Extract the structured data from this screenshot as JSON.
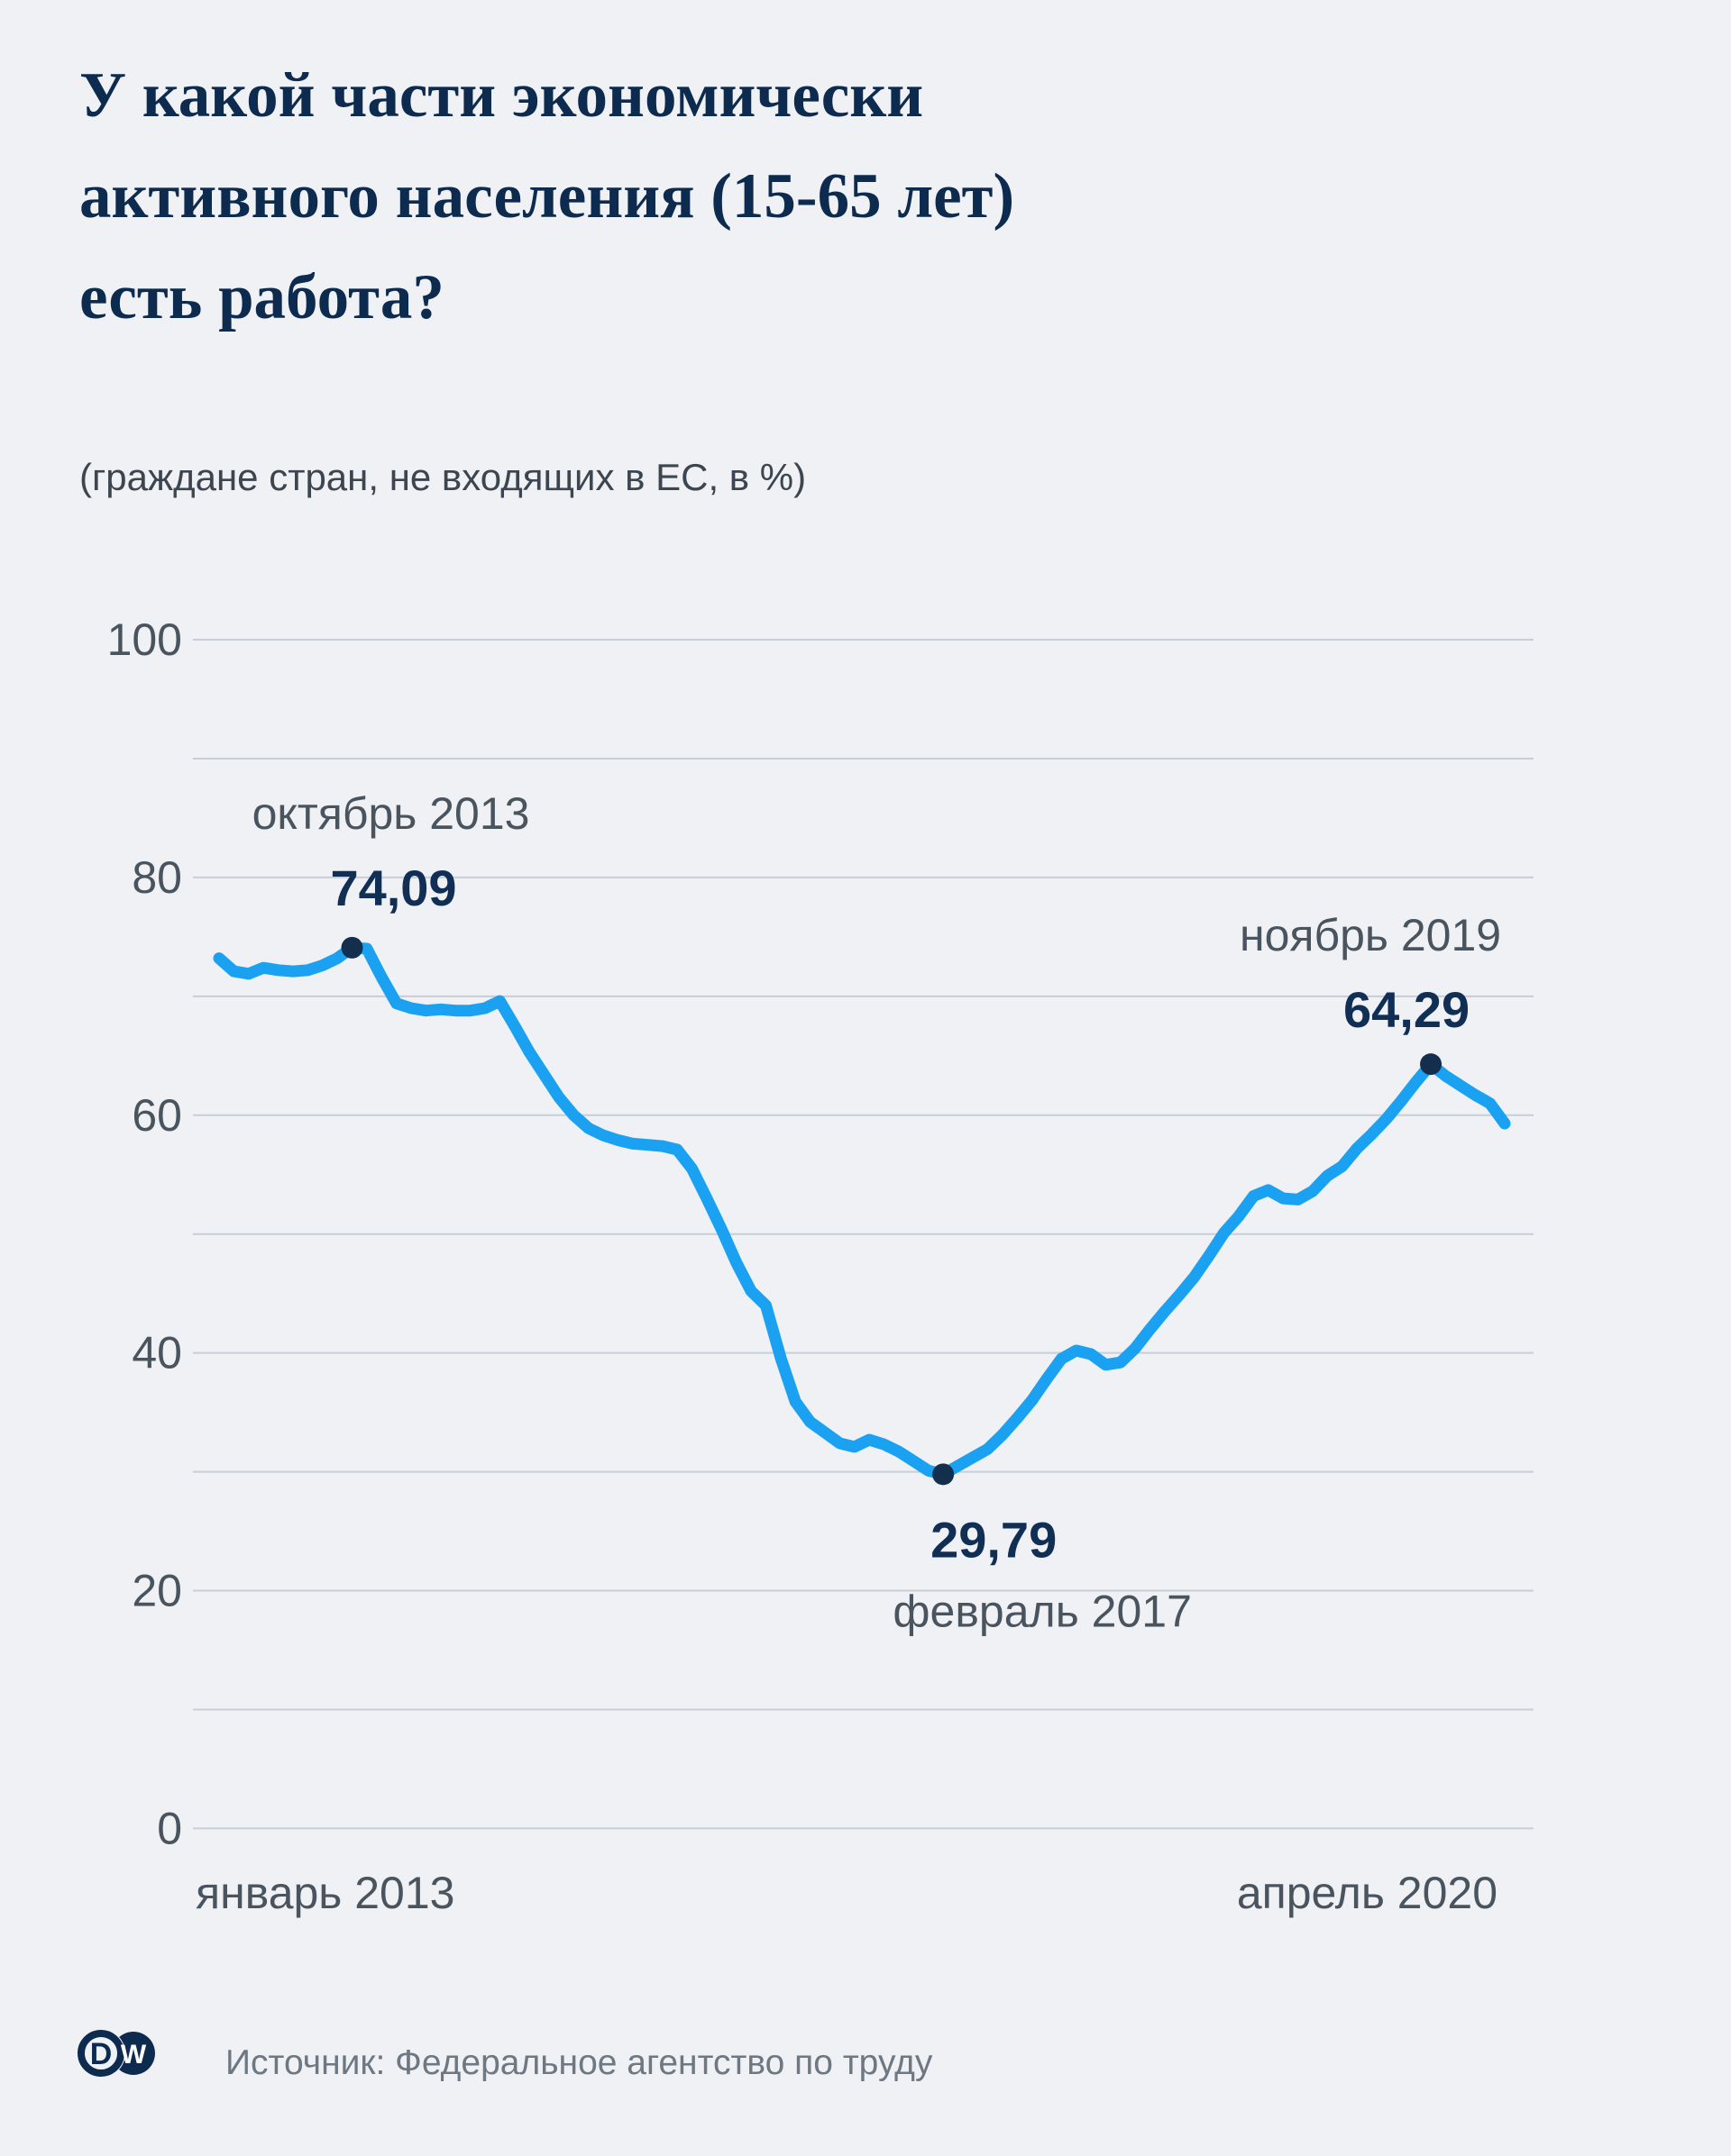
{
  "header": {
    "title": "У какой части экономически активного населения (15-65 лет) есть работа?",
    "subtitle": "(граждане стран, не входящих в ЕС, в %)"
  },
  "chart_data": {
    "type": "line",
    "title": "У какой части экономически активного населения (15-65 лет) есть работа?",
    "subtitle": "(граждане стран, не входящих в ЕС, в %)",
    "x_start_label": "январь 2013",
    "x_end_label": "апрель 2020",
    "x": [
      "2013-01",
      "2013-02",
      "2013-03",
      "2013-04",
      "2013-05",
      "2013-06",
      "2013-07",
      "2013-08",
      "2013-09",
      "2013-10",
      "2013-11",
      "2013-12",
      "2014-01",
      "2014-02",
      "2014-03",
      "2014-04",
      "2014-05",
      "2014-06",
      "2014-07",
      "2014-08",
      "2014-09",
      "2014-10",
      "2014-11",
      "2014-12",
      "2015-01",
      "2015-02",
      "2015-03",
      "2015-04",
      "2015-05",
      "2015-06",
      "2015-07",
      "2015-08",
      "2015-09",
      "2015-10",
      "2015-11",
      "2015-12",
      "2016-01",
      "2016-02",
      "2016-03",
      "2016-04",
      "2016-05",
      "2016-06",
      "2016-07",
      "2016-08",
      "2016-09",
      "2016-10",
      "2016-11",
      "2016-12",
      "2017-01",
      "2017-02",
      "2017-03",
      "2017-04",
      "2017-05",
      "2017-06",
      "2017-07",
      "2017-08",
      "2017-09",
      "2017-10",
      "2017-11",
      "2017-12",
      "2018-01",
      "2018-02",
      "2018-03",
      "2018-04",
      "2018-05",
      "2018-06",
      "2018-07",
      "2018-08",
      "2018-09",
      "2018-10",
      "2018-11",
      "2018-12",
      "2019-01",
      "2019-02",
      "2019-03",
      "2019-04",
      "2019-05",
      "2019-06",
      "2019-07",
      "2019-08",
      "2019-09",
      "2019-10",
      "2019-11",
      "2019-12",
      "2020-01",
      "2020-02",
      "2020-03",
      "2020-04"
    ],
    "values": [
      73.2,
      72.1,
      71.9,
      72.4,
      72.2,
      72.1,
      72.2,
      72.6,
      73.2,
      74.09,
      74.0,
      71.6,
      69.4,
      69.0,
      68.8,
      68.9,
      68.8,
      68.8,
      69.0,
      69.6,
      67.5,
      65.3,
      63.4,
      61.5,
      60.0,
      58.9,
      58.3,
      57.9,
      57.6,
      57.5,
      57.4,
      57.1,
      55.5,
      53.0,
      50.4,
      47.6,
      45.2,
      44.0,
      39.6,
      35.9,
      34.2,
      33.3,
      32.4,
      32.1,
      32.7,
      32.3,
      31.7,
      30.9,
      30.1,
      29.79,
      30.5,
      31.2,
      31.9,
      33.1,
      34.5,
      36.0,
      37.8,
      39.5,
      40.2,
      39.9,
      39.0,
      39.2,
      40.4,
      42.0,
      43.5,
      44.9,
      46.4,
      48.2,
      50.1,
      51.5,
      53.2,
      53.7,
      53.0,
      52.9,
      53.6,
      54.9,
      55.7,
      57.2,
      58.4,
      59.7,
      61.2,
      62.8,
      64.29,
      63.3,
      62.5,
      61.7,
      61.0,
      59.3
    ],
    "yticks": [
      0,
      20,
      40,
      60,
      80,
      100
    ],
    "ylim": [
      0,
      100
    ],
    "grid_step": 10,
    "grid_on": true,
    "legend": "none",
    "line_color": "#1aa1f2",
    "marker_color": "#142f4e",
    "annotations": [
      {
        "label": "октябрь 2013",
        "value_label": "74,09",
        "index": 9,
        "value": 74.09,
        "placement": "above"
      },
      {
        "label": "февраль 2017",
        "value_label": "29,79",
        "index": 49,
        "value": 29.79,
        "placement": "below"
      },
      {
        "label": "ноябрь 2019",
        "value_label": "64,29",
        "index": 82,
        "value": 64.29,
        "placement": "above"
      }
    ]
  },
  "footer": {
    "source": "Источник: Федеральное агентство по труду",
    "logo_d": "D",
    "logo_w": "W"
  },
  "colors": {
    "background": "#eff1f4",
    "title": "#0d2b4e",
    "axis_text": "#4a545e",
    "annotation_value": "#112f55",
    "gridline": "#c8ced6",
    "source_text": "#6e7883"
  }
}
